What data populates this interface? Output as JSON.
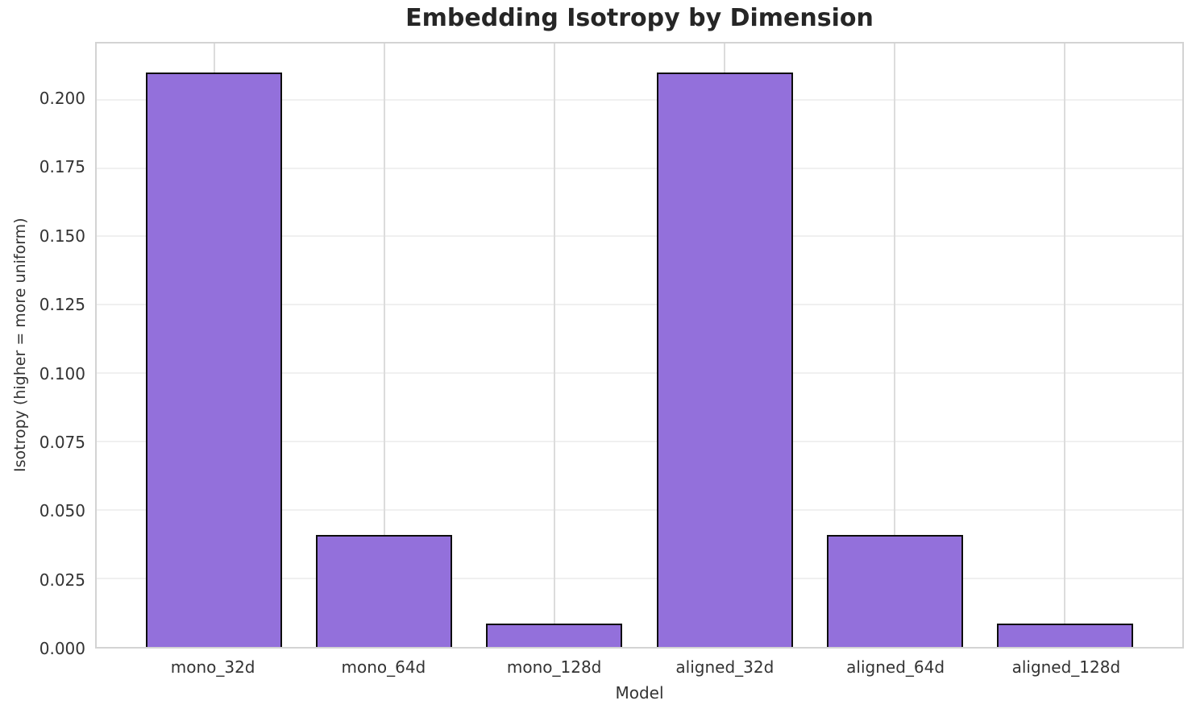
{
  "chart_data": {
    "type": "bar",
    "title": "Embedding Isotropy by Dimension",
    "xlabel": "Model",
    "ylabel": "Isotropy (higher = more uniform)",
    "categories": [
      "mono_32d",
      "mono_64d",
      "mono_128d",
      "aligned_32d",
      "aligned_64d",
      "aligned_128d"
    ],
    "values": [
      0.21,
      0.041,
      0.0084,
      0.21,
      0.041,
      0.0084
    ],
    "ylim": [
      0,
      0.2205
    ],
    "yticks": [
      0.0,
      0.025,
      0.05,
      0.075,
      0.1,
      0.125,
      0.15,
      0.175,
      0.2
    ],
    "ytick_labels": [
      "0.000",
      "0.025",
      "0.050",
      "0.075",
      "0.100",
      "0.125",
      "0.150",
      "0.175",
      "0.200"
    ],
    "grid": true,
    "legend_position": "none",
    "bar_color": "#9370DB",
    "bar_edge_color": "#0d0d0d",
    "title_color": "#262626",
    "tick_color": "#333333"
  }
}
